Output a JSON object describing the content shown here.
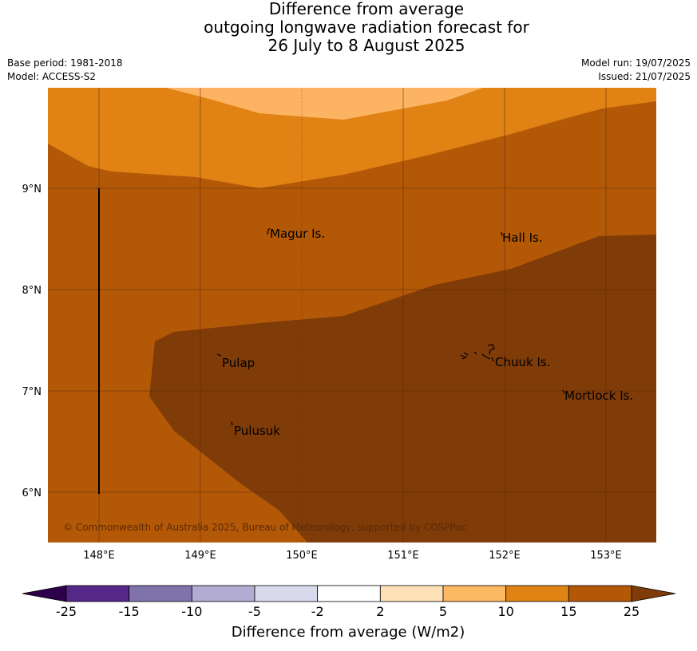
{
  "title": {
    "line1": "Difference from average",
    "line2": "outgoing longwave radiation forecast for",
    "line3": "26 July to 8 August 2025"
  },
  "meta": {
    "base_period": "Base period: 1981-2018",
    "model": "Model: ACCESS-S2",
    "model_run": "Model run: 19/07/2025",
    "issued": "Issued: 21/07/2025"
  },
  "map": {
    "lat_labels": [
      "9°N",
      "8°N",
      "7°N",
      "6°N"
    ],
    "lon_labels": [
      "148°E",
      "149°E",
      "150°E",
      "151°E",
      "152°E",
      "153°E"
    ],
    "places": {
      "magur": "Magur Is.",
      "hall": "Hall Is.",
      "pulap": "Pulap",
      "chuuk": "Chuuk Is.",
      "mortlock": "Mortlock Is.",
      "pulusuk": "Pulusuk"
    },
    "copyright": "© Commonwealth of Australia 2025, Bureau of Meteorology, supported by COSPPac",
    "colors": {
      "band_5_10": "#fdb462",
      "band_10_15": "#e08214",
      "band_15_25": "#b35806",
      "band_over_25": "#7f3b08"
    }
  },
  "colorbar": {
    "title": "Difference from average (W/m2)",
    "ticks": [
      "-25",
      "-15",
      "-10",
      "-5",
      "-2",
      "2",
      "5",
      "10",
      "15",
      "25"
    ],
    "colors": [
      "#542788",
      "#8073ac",
      "#b2abd2",
      "#d8daeb",
      "#ffffff",
      "#fee0b6",
      "#fdb863",
      "#e08214",
      "#b35806"
    ],
    "under_color": "#2d004b",
    "over_color": "#7f3b08"
  }
}
